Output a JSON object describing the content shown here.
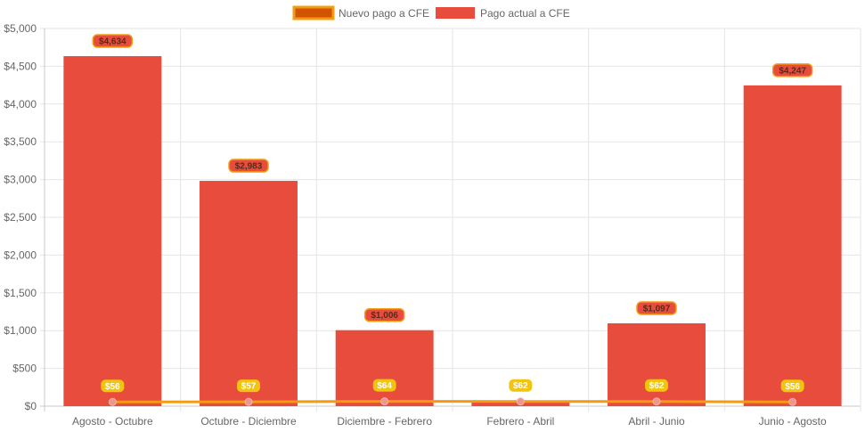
{
  "chart_data": {
    "type": "bar",
    "categories": [
      "Agosto - Octubre",
      "Octubre - Diciembre",
      "Diciembre - Febrero",
      "Febrero - Abril",
      "Abril - Junio",
      "Junio - Agosto"
    ],
    "y_ticks": [
      "$0",
      "$500",
      "$1,000",
      "$1,500",
      "$2,000",
      "$2,500",
      "$3,000",
      "$3,500",
      "$4,000",
      "$4,500",
      "$5,000"
    ],
    "ylim": [
      0,
      5000
    ],
    "grid": true,
    "legend_position": "top-center",
    "series": [
      {
        "name": "Nuevo pago a CFE",
        "type": "line",
        "values": [
          56,
          57,
          64,
          62,
          62,
          56
        ],
        "labels": [
          "$56",
          "$57",
          "$64",
          "$62",
          "$62",
          "$56"
        ],
        "color": "#f39c12",
        "fill_color": "#d35400",
        "point_color": "#f1948a",
        "badge_color": "#f1c40f"
      },
      {
        "name": "Pago actual a CFE",
        "type": "bar",
        "values": [
          4634,
          2983,
          1006,
          62,
          1097,
          4247
        ],
        "labels": [
          "$4,634",
          "$2,983",
          "$1,006",
          "",
          "$1,097",
          "$4,247"
        ],
        "color": "#e74c3c",
        "badge_color": "#e74c3c",
        "badge_border": "#f39c12"
      }
    ]
  }
}
